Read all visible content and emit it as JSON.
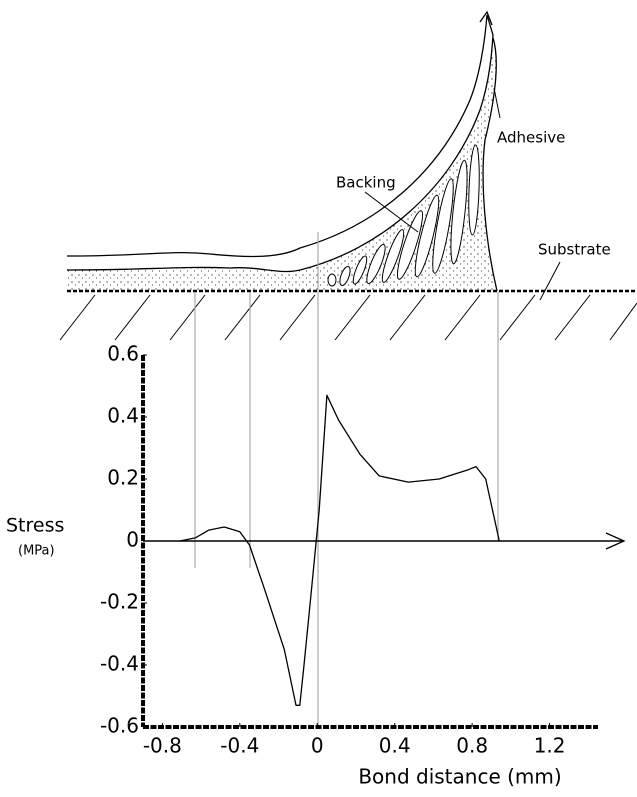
{
  "diagram": {
    "labels": {
      "backing": "Backing",
      "adhesive": "Adhesive",
      "substrate": "Substrate"
    }
  },
  "chart_data": {
    "type": "line",
    "y_label": "Stress",
    "y_unit": "(MPa)",
    "x_label": "Bond distance (mm)",
    "x": [
      -0.71,
      -0.63,
      -0.56,
      -0.48,
      -0.4,
      -0.35,
      -0.27,
      -0.17,
      -0.11,
      -0.09,
      -0.07,
      -0.03,
      0.01,
      0.05,
      0.11,
      0.22,
      0.32,
      0.47,
      0.63,
      0.78,
      0.82,
      0.87,
      0.94
    ],
    "series": [
      {
        "color": "#000000",
        "values": [
          0,
          0.01,
          0.035,
          0.045,
          0.03,
          -0.013,
          -0.16,
          -0.35,
          -0.53,
          -0.53,
          -0.41,
          -0.16,
          0.1,
          0.47,
          0.39,
          0.28,
          0.21,
          0.19,
          0.2,
          0.23,
          0.24,
          0.2,
          0
        ]
      }
    ],
    "xlim": [
      -0.9,
      1.45
    ],
    "ylim": [
      -0.6,
      0.6
    ],
    "xticks": [
      -0.8,
      -0.4,
      0,
      0.4,
      0.8,
      1.2
    ],
    "yticks": [
      -0.6,
      -0.4,
      -0.2,
      0,
      0.2,
      0.4,
      0.6
    ]
  }
}
